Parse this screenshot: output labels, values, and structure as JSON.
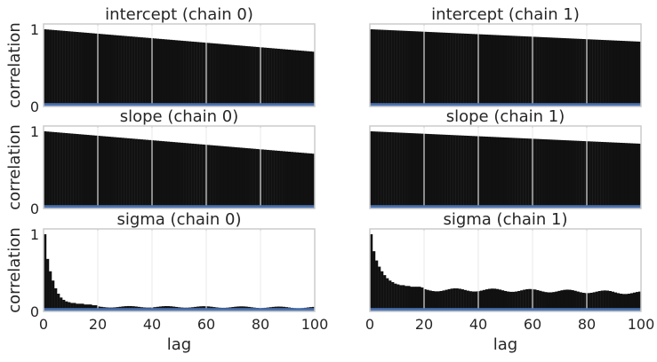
{
  "chart_data": {
    "type": "bar",
    "xlabel": "lag",
    "ylabel": "correlation",
    "xlim": [
      0,
      100
    ],
    "ylim": [
      0,
      1
    ],
    "xticks": [
      0,
      20,
      40,
      60,
      80,
      100
    ],
    "yticks": [
      0,
      1
    ],
    "xtick_labels": [
      "0",
      "20",
      "40",
      "60",
      "80",
      "100"
    ],
    "ytick_labels": [
      "0",
      "1"
    ],
    "grid": true,
    "bar_color": "#111111",
    "zero_line_color": "#4c72b0",
    "frame_color": "#cccccc",
    "panels": [
      {
        "title": "intercept (chain 0)",
        "row": 0,
        "col": 0,
        "kind": "linear",
        "start": 1.0,
        "end": 0.71
      },
      {
        "title": "intercept (chain 1)",
        "row": 0,
        "col": 1,
        "kind": "linear",
        "start": 1.0,
        "end": 0.84
      },
      {
        "title": "slope (chain 0)",
        "row": 1,
        "col": 0,
        "kind": "linear",
        "start": 1.0,
        "end": 0.71
      },
      {
        "title": "slope (chain 1)",
        "row": 1,
        "col": 1,
        "kind": "linear",
        "start": 1.0,
        "end": 0.84
      },
      {
        "title": "sigma (chain 0)",
        "row": 2,
        "col": 0,
        "kind": "decay",
        "head": [
          1.0,
          0.68,
          0.52,
          0.4,
          0.3,
          0.23,
          0.18,
          0.15,
          0.13,
          0.12,
          0.11,
          0.11,
          0.1,
          0.1,
          0.1,
          0.09,
          0.09,
          0.09,
          0.08,
          0.08
        ],
        "tail": 0.06,
        "wave": 0.01,
        "end": 0.05
      },
      {
        "title": "sigma (chain 1)",
        "row": 2,
        "col": 1,
        "kind": "decay",
        "head": [
          1.0,
          0.78,
          0.66,
          0.58,
          0.52,
          0.47,
          0.43,
          0.4,
          0.38,
          0.36,
          0.35,
          0.34,
          0.34,
          0.33,
          0.33,
          0.32,
          0.32,
          0.32,
          0.32,
          0.31
        ],
        "tail": 0.28,
        "wave": 0.02,
        "end": 0.24
      }
    ]
  }
}
